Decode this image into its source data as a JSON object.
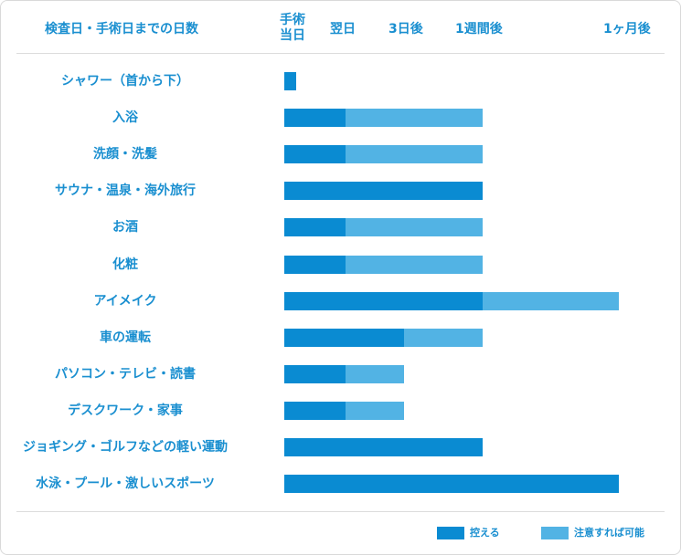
{
  "chart_data": {
    "type": "bar",
    "orientation": "horizontal",
    "stacked": true,
    "title": "検査日・手術日までの日数",
    "x_ticks": [
      {
        "label": "手術\n当日",
        "value": 0
      },
      {
        "label": "翌日",
        "value": 1
      },
      {
        "label": "3日後",
        "value": 3
      },
      {
        "label": "1週間後",
        "value": 7
      },
      {
        "label": "1ヶ月後",
        "value": 30
      }
    ],
    "categories": [
      "シャワー（首から下）",
      "入浴",
      "洗顔・洗髪",
      "サウナ・温泉・海外旅行",
      "お酒",
      "化粧",
      "アイメイク",
      "車の運転",
      "パソコン・テレビ・読書",
      "デスクワーク・家事",
      "ジョギング・ゴルフなどの軽い運動",
      "水泳・プール・激しいスポーツ"
    ],
    "series": [
      {
        "name": "控える",
        "color": "#0a8bd2",
        "end_values": [
          0.2,
          1,
          1,
          7,
          1,
          1,
          7,
          3,
          1,
          1,
          7,
          30
        ]
      },
      {
        "name": "注意すれば可能",
        "color": "#52b3e4",
        "end_values": [
          0.2,
          7,
          7,
          7,
          7,
          7,
          30,
          7,
          3,
          3,
          7,
          30
        ]
      }
    ],
    "legend": "bottom-right",
    "grid": false
  }
}
